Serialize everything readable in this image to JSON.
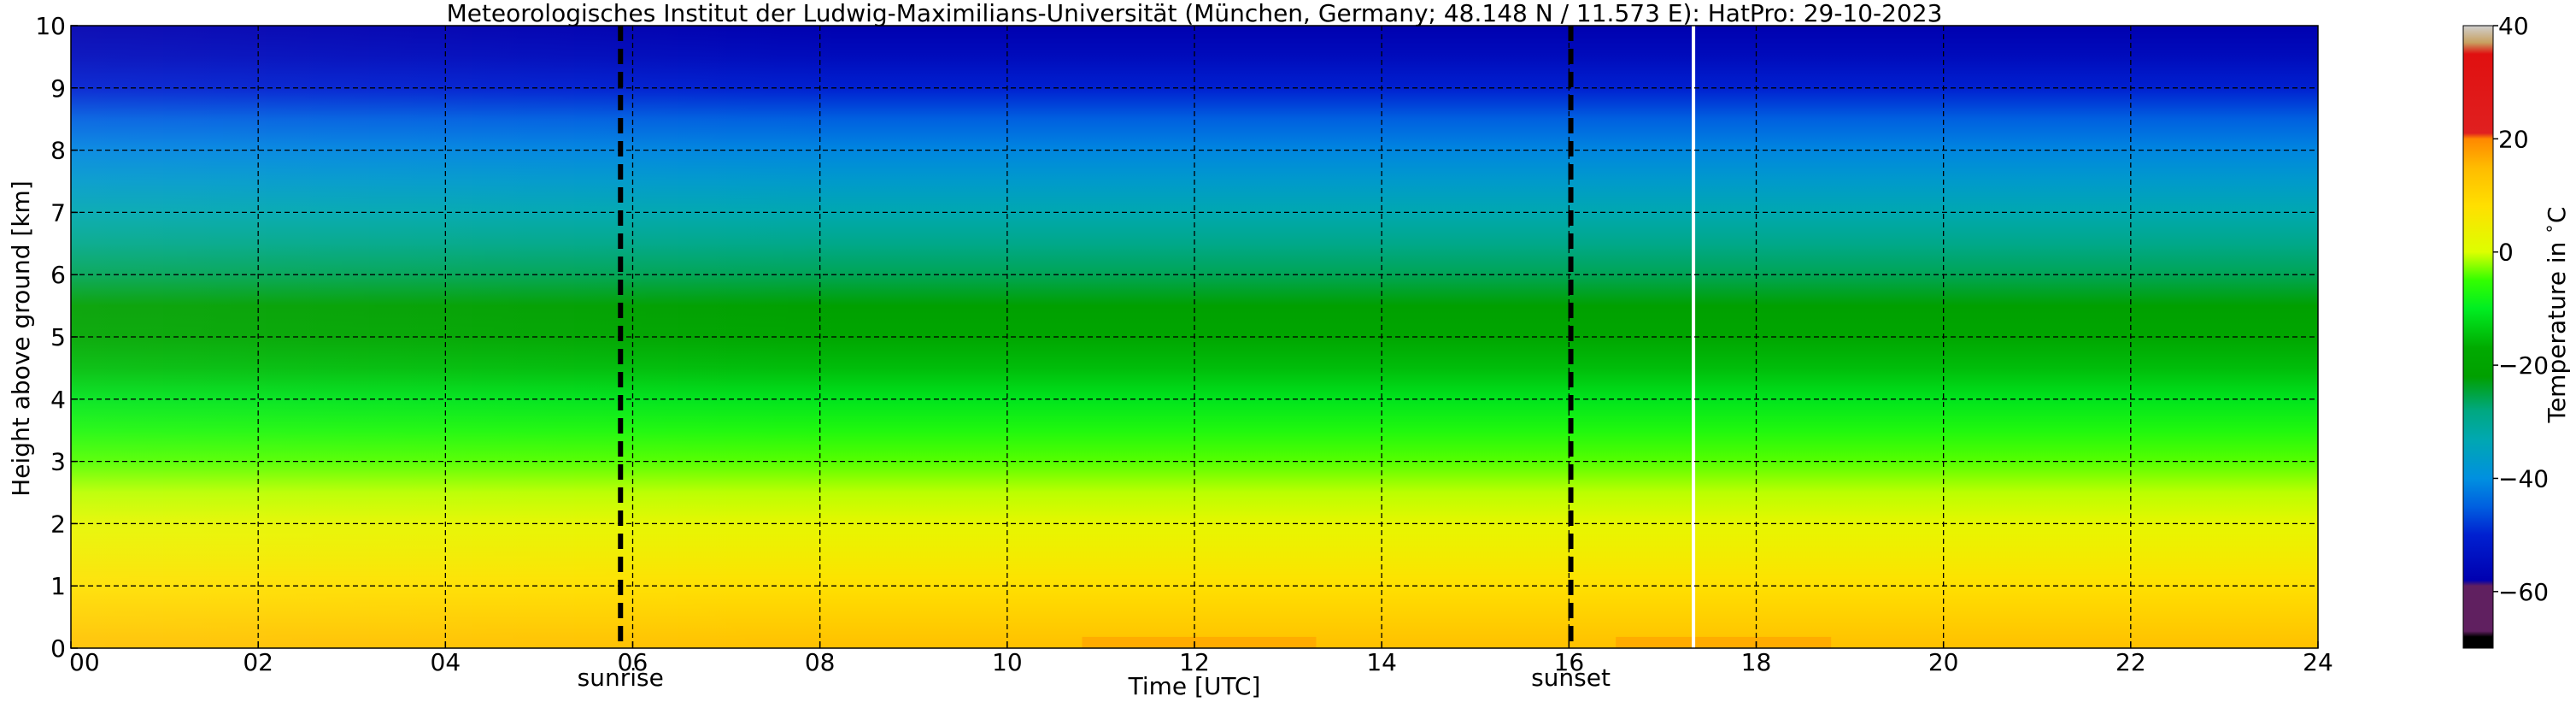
{
  "chart_data": {
    "type": "heatmap",
    "title": "Meteorologisches Institut der Ludwig-Maximilians-Universität (München, Germany; 48.148 N / 11.573 E):    HatPro: 29-10-2023",
    "xlabel": "Time [UTC]",
    "ylabel": "Height above ground [km]",
    "xlim": [
      0,
      24
    ],
    "ylim": [
      0,
      10
    ],
    "xticks": [
      0,
      2,
      4,
      6,
      8,
      10,
      12,
      14,
      16,
      18,
      20,
      22,
      24
    ],
    "xtick_labels": [
      "00",
      "02",
      "04",
      "06",
      "08",
      "10",
      "12",
      "14",
      "16",
      "18",
      "20",
      "22",
      "24"
    ],
    "yticks": [
      0,
      1,
      2,
      3,
      4,
      5,
      6,
      7,
      8,
      9,
      10
    ],
    "ytick_labels": [
      "0",
      "1",
      "2",
      "3",
      "4",
      "5",
      "6",
      "7",
      "8",
      "9",
      "10"
    ],
    "grid": true,
    "sunrise": {
      "label": "sunrise",
      "time": 5.87
    },
    "sunset": {
      "label": "sunset",
      "time": 16.02
    },
    "data_gap_time": 17.33,
    "temperature_profile_heights_km": [
      0,
      0.5,
      1,
      1.5,
      2,
      2.5,
      3,
      3.5,
      4,
      4.5,
      5,
      5.5,
      6,
      6.5,
      7,
      7.5,
      8,
      8.5,
      9,
      9.5,
      10
    ],
    "temperature_profile_celsius": [
      14,
      11,
      8,
      5,
      2,
      -1,
      -4,
      -7,
      -11,
      -15,
      -19,
      -22,
      -26,
      -29,
      -33,
      -37,
      -41,
      -45,
      -50,
      -55,
      -58
    ],
    "warm_surface_patches": [
      {
        "t0": 10.8,
        "t1": 13.3,
        "temperature_celsius": 17
      },
      {
        "t0": 16.5,
        "t1": 18.8,
        "temperature_celsius": 17
      }
    ],
    "colorbar": {
      "label": "Temperature in $^\\circ$C",
      "ticks": [
        40,
        20,
        0,
        -20,
        -40,
        -60
      ],
      "tick_labels": [
        "40",
        "20",
        "0",
        "−20",
        "−40",
        "−60"
      ],
      "range": [
        -70,
        40
      ],
      "stops": [
        {
          "value": 40,
          "color": "#d0d0d0"
        },
        {
          "value": 37,
          "color": "#c8a060"
        },
        {
          "value": 35,
          "color": "#e01010"
        },
        {
          "value": 21,
          "color": "#e02020"
        },
        {
          "value": 20,
          "color": "#ff8800"
        },
        {
          "value": 15,
          "color": "#ffbb00"
        },
        {
          "value": 8,
          "color": "#ffe000"
        },
        {
          "value": 0,
          "color": "#ddff00"
        },
        {
          "value": -5,
          "color": "#33ff00"
        },
        {
          "value": -10,
          "color": "#00ee22"
        },
        {
          "value": -17,
          "color": "#00aa00"
        },
        {
          "value": -22,
          "color": "#00a000"
        },
        {
          "value": -28,
          "color": "#00a880"
        },
        {
          "value": -33,
          "color": "#00a8b0"
        },
        {
          "value": -40,
          "color": "#0090e0"
        },
        {
          "value": -45,
          "color": "#0060e0"
        },
        {
          "value": -50,
          "color": "#0020d0"
        },
        {
          "value": -58,
          "color": "#0000b0"
        },
        {
          "value": -59,
          "color": "#602060"
        },
        {
          "value": -67,
          "color": "#602060"
        },
        {
          "value": -68,
          "color": "#000000"
        },
        {
          "value": -70,
          "color": "#000000"
        }
      ]
    }
  }
}
